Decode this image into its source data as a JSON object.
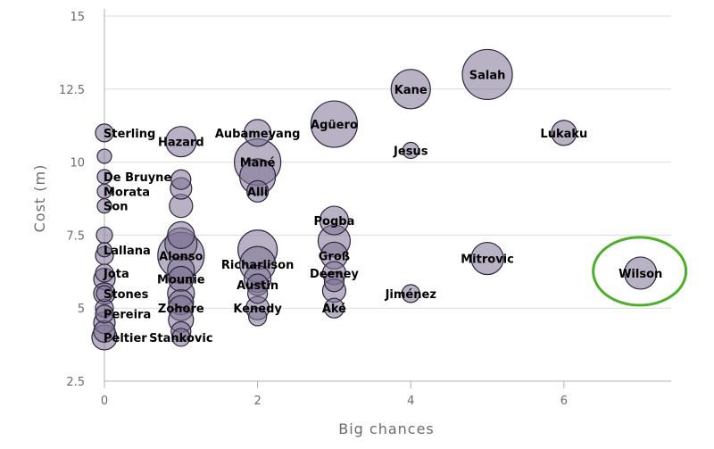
{
  "chart_data": {
    "type": "scatter",
    "xlabel": "Big chances",
    "ylabel": "Cost (m)",
    "xlim": [
      0,
      7.4
    ],
    "ylim": [
      2.5,
      15
    ],
    "x_ticks": [
      "0",
      "2",
      "4",
      "6"
    ],
    "y_ticks": [
      "2.5",
      "5",
      "7.5",
      "10",
      "12.5",
      "15"
    ],
    "grid": "horizontal",
    "colors": {
      "bubble_fill": "#7d7394",
      "bubble_stroke": "#2e2640",
      "highlight": "#4caf2a",
      "grid": "#dcdcdc",
      "axis": "#b0b0b0"
    },
    "highlighted": "Wilson",
    "points": [
      {
        "name": "Salah",
        "x": 5,
        "y": 13.0,
        "size": 28
      },
      {
        "name": "Kane",
        "x": 4,
        "y": 12.5,
        "size": 22
      },
      {
        "name": "Agüero",
        "x": 3,
        "y": 11.3,
        "size": 26
      },
      {
        "name": "Lukaku",
        "x": 6,
        "y": 11.0,
        "size": 14
      },
      {
        "name": "Aubameyang",
        "x": 2,
        "y": 11.0,
        "size": 15
      },
      {
        "name": "Hazard",
        "x": 1,
        "y": 10.7,
        "size": 17
      },
      {
        "name": "Sterling",
        "x": 0,
        "y": 11.0,
        "size": 10
      },
      {
        "name": "Jesus",
        "x": 4,
        "y": 10.4,
        "size": 9
      },
      {
        "name": "Mané",
        "x": 2,
        "y": 10.0,
        "size": 26
      },
      {
        "name": "",
        "x": 0,
        "y": 10.2,
        "size": 8
      },
      {
        "name": "De Bruyne",
        "x": 0,
        "y": 9.5,
        "size": 8
      },
      {
        "name": "",
        "x": 1,
        "y": 9.4,
        "size": 11
      },
      {
        "name": "",
        "x": 1,
        "y": 9.1,
        "size": 12
      },
      {
        "name": "",
        "x": 2,
        "y": 9.5,
        "size": 20
      },
      {
        "name": "Alli",
        "x": 2,
        "y": 9.0,
        "size": 12
      },
      {
        "name": "Morata",
        "x": 0,
        "y": 9.0,
        "size": 8
      },
      {
        "name": "",
        "x": 1,
        "y": 8.5,
        "size": 13
      },
      {
        "name": "Son",
        "x": 0,
        "y": 8.5,
        "size": 8
      },
      {
        "name": "Pogba",
        "x": 3,
        "y": 8.0,
        "size": 16
      },
      {
        "name": "",
        "x": 0,
        "y": 7.5,
        "size": 9
      },
      {
        "name": "",
        "x": 1,
        "y": 7.5,
        "size": 15
      },
      {
        "name": "",
        "x": 1,
        "y": 7.2,
        "size": 18
      },
      {
        "name": "",
        "x": 3,
        "y": 7.3,
        "size": 18
      },
      {
        "name": "",
        "x": 2,
        "y": 7.0,
        "size": 22
      },
      {
        "name": "Lallana",
        "x": 0,
        "y": 7.0,
        "size": 8
      },
      {
        "name": "",
        "x": 0,
        "y": 6.8,
        "size": 10
      },
      {
        "name": "Alonso",
        "x": 1,
        "y": 6.8,
        "size": 26
      },
      {
        "name": "Groß",
        "x": 3,
        "y": 6.8,
        "size": 15
      },
      {
        "name": "Mitrovic",
        "x": 5,
        "y": 6.7,
        "size": 18
      },
      {
        "name": "Richarlison",
        "x": 2,
        "y": 6.5,
        "size": 20
      },
      {
        "name": "",
        "x": 1,
        "y": 6.3,
        "size": 15
      },
      {
        "name": "Wilson",
        "x": 7,
        "y": 6.2,
        "size": 18
      },
      {
        "name": "Jota",
        "x": 0,
        "y": 6.2,
        "size": 10
      },
      {
        "name": "Deeney",
        "x": 3,
        "y": 6.2,
        "size": 13
      },
      {
        "name": "Mounie",
        "x": 1,
        "y": 6.0,
        "size": 14
      },
      {
        "name": "",
        "x": 0,
        "y": 6.0,
        "size": 12
      },
      {
        "name": "",
        "x": 2,
        "y": 6.0,
        "size": 15
      },
      {
        "name": "Austin",
        "x": 2,
        "y": 5.8,
        "size": 12
      },
      {
        "name": "",
        "x": 3,
        "y": 5.9,
        "size": 11
      },
      {
        "name": "",
        "x": 0,
        "y": 5.5,
        "size": 12
      },
      {
        "name": "",
        "x": 1,
        "y": 5.5,
        "size": 15
      },
      {
        "name": "Stones",
        "x": 0,
        "y": 5.5,
        "size": 9
      },
      {
        "name": "Jiménez",
        "x": 4,
        "y": 5.5,
        "size": 10
      },
      {
        "name": "",
        "x": 2,
        "y": 5.5,
        "size": 11
      },
      {
        "name": "",
        "x": 3,
        "y": 5.6,
        "size": 13
      },
      {
        "name": "",
        "x": 1,
        "y": 5.2,
        "size": 14
      },
      {
        "name": "",
        "x": 0,
        "y": 5.0,
        "size": 10
      },
      {
        "name": "Aké",
        "x": 3,
        "y": 5.0,
        "size": 11
      },
      {
        "name": "Kenedy",
        "x": 2,
        "y": 5.0,
        "size": 13
      },
      {
        "name": "Zohore",
        "x": 1,
        "y": 5.0,
        "size": 14
      },
      {
        "name": "Pereira",
        "x": 0,
        "y": 4.8,
        "size": 10
      },
      {
        "name": "",
        "x": 0,
        "y": 4.5,
        "size": 12
      },
      {
        "name": "",
        "x": 1,
        "y": 4.6,
        "size": 14
      },
      {
        "name": "",
        "x": 2,
        "y": 4.7,
        "size": 10
      },
      {
        "name": "",
        "x": 0,
        "y": 4.2,
        "size": 12
      },
      {
        "name": "",
        "x": 1,
        "y": 4.2,
        "size": 11
      },
      {
        "name": "Stankovic",
        "x": 1,
        "y": 4.0,
        "size": 10
      },
      {
        "name": "Peltier",
        "x": 0,
        "y": 4.0,
        "size": 14
      }
    ]
  }
}
